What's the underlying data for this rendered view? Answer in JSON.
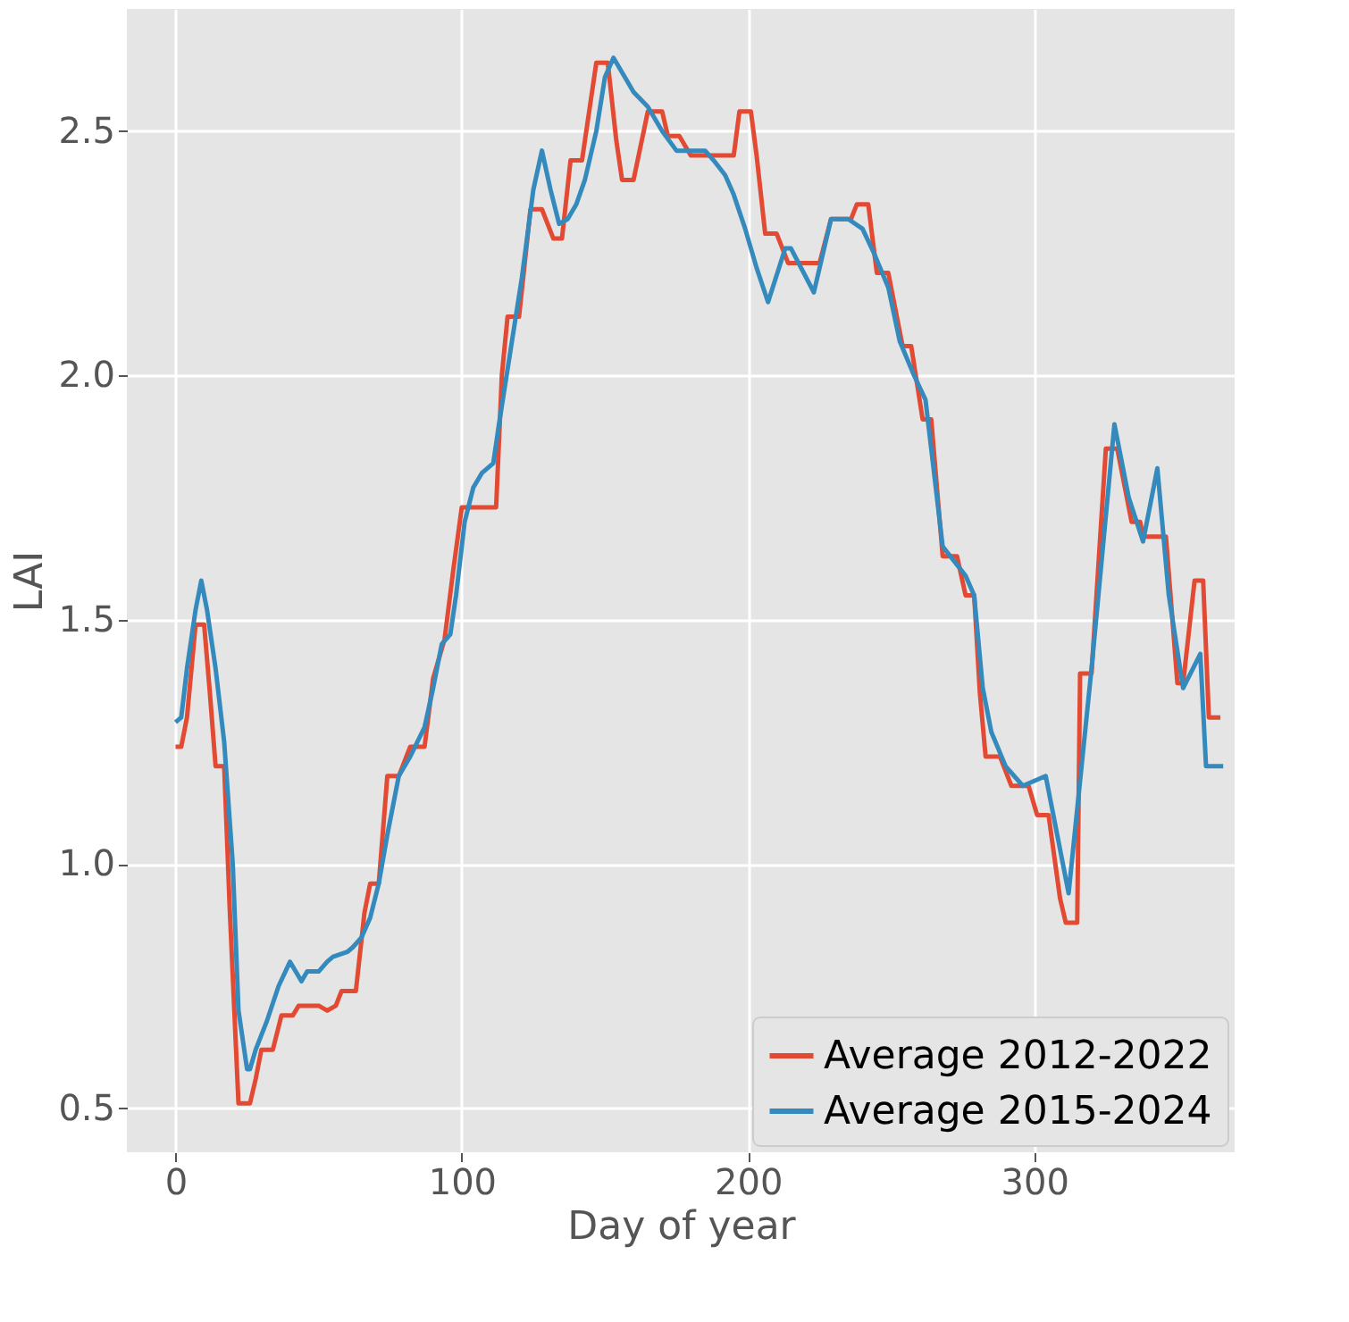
{
  "chart_data": {
    "type": "line",
    "xlabel": "Day of year",
    "ylabel": "LAI",
    "xlim": [
      -17,
      370
    ],
    "ylim": [
      0.41,
      2.75
    ],
    "xticks": [
      0,
      100,
      200,
      300
    ],
    "yticks": [
      0.5,
      {
        "value": 1,
        "label": "1.0"
      },
      1.5,
      {
        "value": 2,
        "label": "2.0"
      },
      2.5
    ],
    "grid": true,
    "legend": "bottom right",
    "line_style": "solid",
    "marker": "none",
    "series": [
      {
        "name": "Average 2012-2022",
        "color": "#e24a33",
        "x": [
          0,
          2,
          4,
          7,
          10,
          12,
          14,
          17,
          19,
          22,
          26,
          28,
          30,
          34,
          37,
          41,
          43,
          50,
          53,
          56,
          58,
          63,
          66,
          68,
          71,
          74,
          78,
          82,
          87,
          90,
          94,
          97,
          100,
          112,
          114,
          116,
          120,
          124,
          128,
          132,
          135,
          138,
          142,
          147,
          151,
          154,
          156,
          160,
          165,
          170,
          172,
          176,
          180,
          195,
          197,
          201,
          203,
          206,
          210,
          214,
          225,
          229,
          236,
          238,
          242,
          245,
          249,
          254,
          257,
          261,
          264,
          268,
          273,
          276,
          279,
          281,
          283,
          288,
          292,
          298,
          301,
          305,
          309,
          311,
          315,
          316,
          320,
          325,
          329,
          334,
          337,
          338,
          344,
          346,
          350,
          352,
          356,
          359,
          361,
          365
        ],
        "values": [
          1.24,
          1.24,
          1.3,
          1.49,
          1.49,
          1.35,
          1.2,
          1.2,
          0.9,
          0.51,
          0.51,
          0.56,
          0.62,
          0.62,
          0.69,
          0.69,
          0.71,
          0.71,
          0.7,
          0.71,
          0.74,
          0.74,
          0.9,
          0.96,
          0.96,
          1.18,
          1.18,
          1.24,
          1.24,
          1.38,
          1.46,
          1.6,
          1.73,
          1.73,
          2.0,
          2.12,
          2.12,
          2.34,
          2.34,
          2.28,
          2.28,
          2.44,
          2.44,
          2.64,
          2.64,
          2.48,
          2.4,
          2.4,
          2.54,
          2.54,
          2.49,
          2.49,
          2.45,
          2.45,
          2.54,
          2.54,
          2.45,
          2.29,
          2.29,
          2.23,
          2.23,
          2.32,
          2.32,
          2.35,
          2.35,
          2.21,
          2.21,
          2.06,
          2.06,
          1.91,
          1.91,
          1.63,
          1.63,
          1.55,
          1.55,
          1.35,
          1.22,
          1.22,
          1.16,
          1.16,
          1.1,
          1.1,
          0.93,
          0.88,
          0.88,
          1.39,
          1.39,
          1.85,
          1.85,
          1.7,
          1.7,
          1.67,
          1.67,
          1.67,
          1.37,
          1.37,
          1.58,
          1.58,
          1.3,
          1.3
        ]
      },
      {
        "name": "Average 2015-2024",
        "color": "#348abd",
        "x": [
          0,
          2,
          4,
          7,
          9,
          11,
          14,
          17,
          20,
          22,
          25,
          26,
          28,
          32,
          36,
          40,
          44,
          46,
          50,
          53,
          55,
          60,
          62,
          65,
          68,
          71,
          74,
          78,
          82,
          87,
          90,
          93,
          96,
          98,
          101,
          104,
          107,
          111,
          113,
          117,
          121,
          125,
          128,
          131,
          134,
          137,
          140,
          143,
          147,
          150,
          153,
          157,
          160,
          165,
          170,
          175,
          185,
          188,
          192,
          195,
          199,
          203,
          207,
          213,
          215,
          223,
          229,
          235,
          240,
          244,
          249,
          253,
          258,
          262,
          268,
          272,
          276,
          279,
          282,
          285,
          290,
          296,
          304,
          312,
          320,
          328,
          333,
          338,
          343,
          347,
          352,
          358,
          360,
          362,
          366
        ],
        "values": [
          1.29,
          1.3,
          1.4,
          1.52,
          1.58,
          1.52,
          1.4,
          1.25,
          1.0,
          0.7,
          0.58,
          0.58,
          0.62,
          0.68,
          0.75,
          0.8,
          0.76,
          0.78,
          0.78,
          0.8,
          0.81,
          0.82,
          0.83,
          0.85,
          0.89,
          0.96,
          1.06,
          1.18,
          1.22,
          1.28,
          1.36,
          1.45,
          1.47,
          1.55,
          1.7,
          1.77,
          1.8,
          1.82,
          1.9,
          2.05,
          2.2,
          2.38,
          2.46,
          2.38,
          2.31,
          2.32,
          2.35,
          2.4,
          2.5,
          2.61,
          2.65,
          2.61,
          2.58,
          2.55,
          2.5,
          2.46,
          2.46,
          2.44,
          2.41,
          2.37,
          2.3,
          2.22,
          2.15,
          2.26,
          2.26,
          2.17,
          2.32,
          2.32,
          2.3,
          2.25,
          2.18,
          2.07,
          2.0,
          1.95,
          1.65,
          1.62,
          1.59,
          1.55,
          1.36,
          1.27,
          1.2,
          1.16,
          1.18,
          0.94,
          1.4,
          1.9,
          1.75,
          1.66,
          1.81,
          1.55,
          1.36,
          1.43,
          1.2,
          1.2,
          1.2
        ]
      }
    ]
  }
}
